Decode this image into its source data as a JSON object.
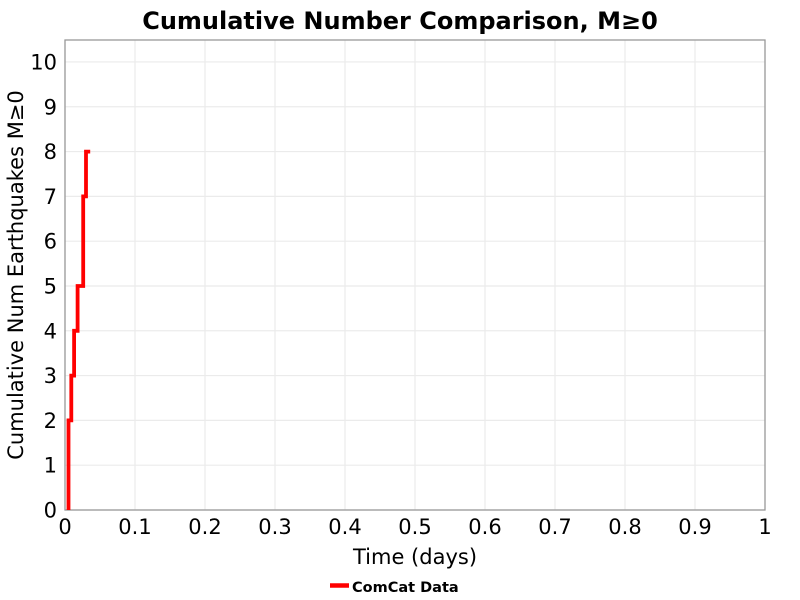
{
  "chart_data": {
    "type": "line",
    "line_style": "step-post",
    "title": "Cumulative Number Comparison, M≥0",
    "xlabel": "Time (days)",
    "ylabel": "Cumulative Num Earthquakes M≥0",
    "xlim": [
      0,
      1
    ],
    "ylim": [
      0,
      10.49
    ],
    "grid": true,
    "xticks": {
      "values": [
        0,
        0.1,
        0.2,
        0.3,
        0.4,
        0.5,
        0.6,
        0.7,
        0.8,
        0.9,
        1
      ],
      "labels": [
        "0",
        "0.1",
        "0.2",
        "0.3",
        "0.4",
        "0.5",
        "0.6",
        "0.7",
        "0.8",
        "0.9",
        "1"
      ]
    },
    "yticks": {
      "values": [
        0,
        1,
        2,
        3,
        4,
        5,
        6,
        7,
        8,
        9,
        10
      ],
      "labels": [
        "0",
        "1",
        "2",
        "3",
        "4",
        "5",
        "6",
        "7",
        "8",
        "9",
        "10"
      ]
    },
    "colors": {
      "series_red": "#ff0000",
      "grid_line": "#ebebeb",
      "plot_frame": "#999999",
      "text": "#000000",
      "background": "#ffffff"
    },
    "legend": {
      "position": "bottom-center",
      "entries": [
        {
          "label": "ComCat Data",
          "color": "#ff0000"
        }
      ]
    },
    "series": [
      {
        "name": "ComCat Data",
        "color": "#ff0000",
        "line_width": 3.8,
        "event_times_days": [
          0.005,
          0.005,
          0.009,
          0.013,
          0.018,
          0.026,
          0.026,
          0.03
        ],
        "cumulative_counts": [
          1,
          2,
          3,
          4,
          5,
          6,
          7,
          8
        ],
        "step_points": [
          [
            0.005,
            0
          ],
          [
            0.005,
            2
          ],
          [
            0.009,
            2
          ],
          [
            0.009,
            3
          ],
          [
            0.013,
            3
          ],
          [
            0.013,
            4
          ],
          [
            0.018,
            4
          ],
          [
            0.018,
            5
          ],
          [
            0.026,
            5
          ],
          [
            0.026,
            7
          ],
          [
            0.03,
            7
          ],
          [
            0.03,
            8
          ],
          [
            0.036,
            8
          ]
        ]
      }
    ]
  }
}
